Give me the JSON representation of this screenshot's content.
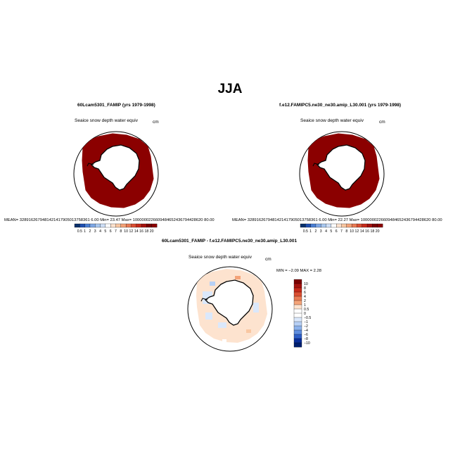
{
  "figure": {
    "main_title": "JJA"
  },
  "panels": [
    {
      "title": "60Lcam5301_FAMIP (yrs 1979-1998)",
      "variable": "SeaIce snow depth water equiv",
      "units": "cm",
      "mean": "MEAN= 328916267948142141790501375836 16.00",
      "stats_text": "MEAN= 3289162679481421417905013758361​6.00    Min=     23.47   Max=  1000000226609484652436794428620 80.00"
    }
  ],
  "left_panel": {
    "title": "60Lcam5301_FAMIP (yrs 1979-1998)",
    "variable": "Seaice snow depth water equiv",
    "units": "cm",
    "stats_text": "MEAN=  3289162679481421417905013758361 6.00   Min=    23.47   Max=  1000000226609484652436794428620 80.00",
    "colorbar_labels": [
      "0.5",
      "1",
      "2",
      "3",
      "4",
      "5",
      "6",
      "7",
      "8",
      "10",
      "12",
      "14",
      "16",
      "18",
      "20"
    ]
  },
  "right_panel": {
    "title": "f.e12.FAMIPC5.ne30_ne30.amip_L30.001 (yrs 1979-1998)",
    "variable": "Seaice snow depth water equiv",
    "units": "cm",
    "stats_text": "MEAN=  3289162679481421417905013758361 6.00   Min=    22.27   Max=  1000000226609484652436794428620 80.00",
    "colorbar_labels": [
      "0.5",
      "1",
      "2",
      "3",
      "4",
      "5",
      "6",
      "7",
      "8",
      "10",
      "12",
      "14",
      "16",
      "18",
      "20"
    ]
  },
  "diff_panel": {
    "title": "60Lcam5301_FAMIP - f.e12.FAMIPC5.ne30_ne30.amip_L30.001",
    "variable": "Seaice snow depth water equiv",
    "units": "cm",
    "stats_text": "MIN =  −2.09  MAX =    2.28",
    "colorbar_labels": [
      "10",
      "8",
      "6",
      "4",
      "2",
      "1",
      "0.5",
      "0",
      "−0.5",
      "−1",
      "−2",
      "−4",
      "−6",
      "−8",
      "−10"
    ]
  },
  "colors": {
    "seq_scale": [
      "#08306b",
      "#1f4fb0",
      "#4a7fd4",
      "#7ea8e6",
      "#a9c8f0",
      "#cfe0f7",
      "#ffffff",
      "#fde3cf",
      "#f9c7a2",
      "#f4a378",
      "#ea7b55",
      "#dc4f33",
      "#c62a1b",
      "#a5120e",
      "#7a0000"
    ],
    "div_scale": [
      "#7a0000",
      "#a5120e",
      "#c62a1b",
      "#dc4f33",
      "#ea7b55",
      "#f4a378",
      "#fde3cf",
      "#ffffff",
      "#ffffff",
      "#dbe8fb",
      "#b7d0f5",
      "#8cb2ec",
      "#5e8ddf",
      "#2e5ec8",
      "#0a2f9a",
      "#001f6e"
    ],
    "field_dark": "#8b0000",
    "diff_fill": "#fde3cf"
  }
}
